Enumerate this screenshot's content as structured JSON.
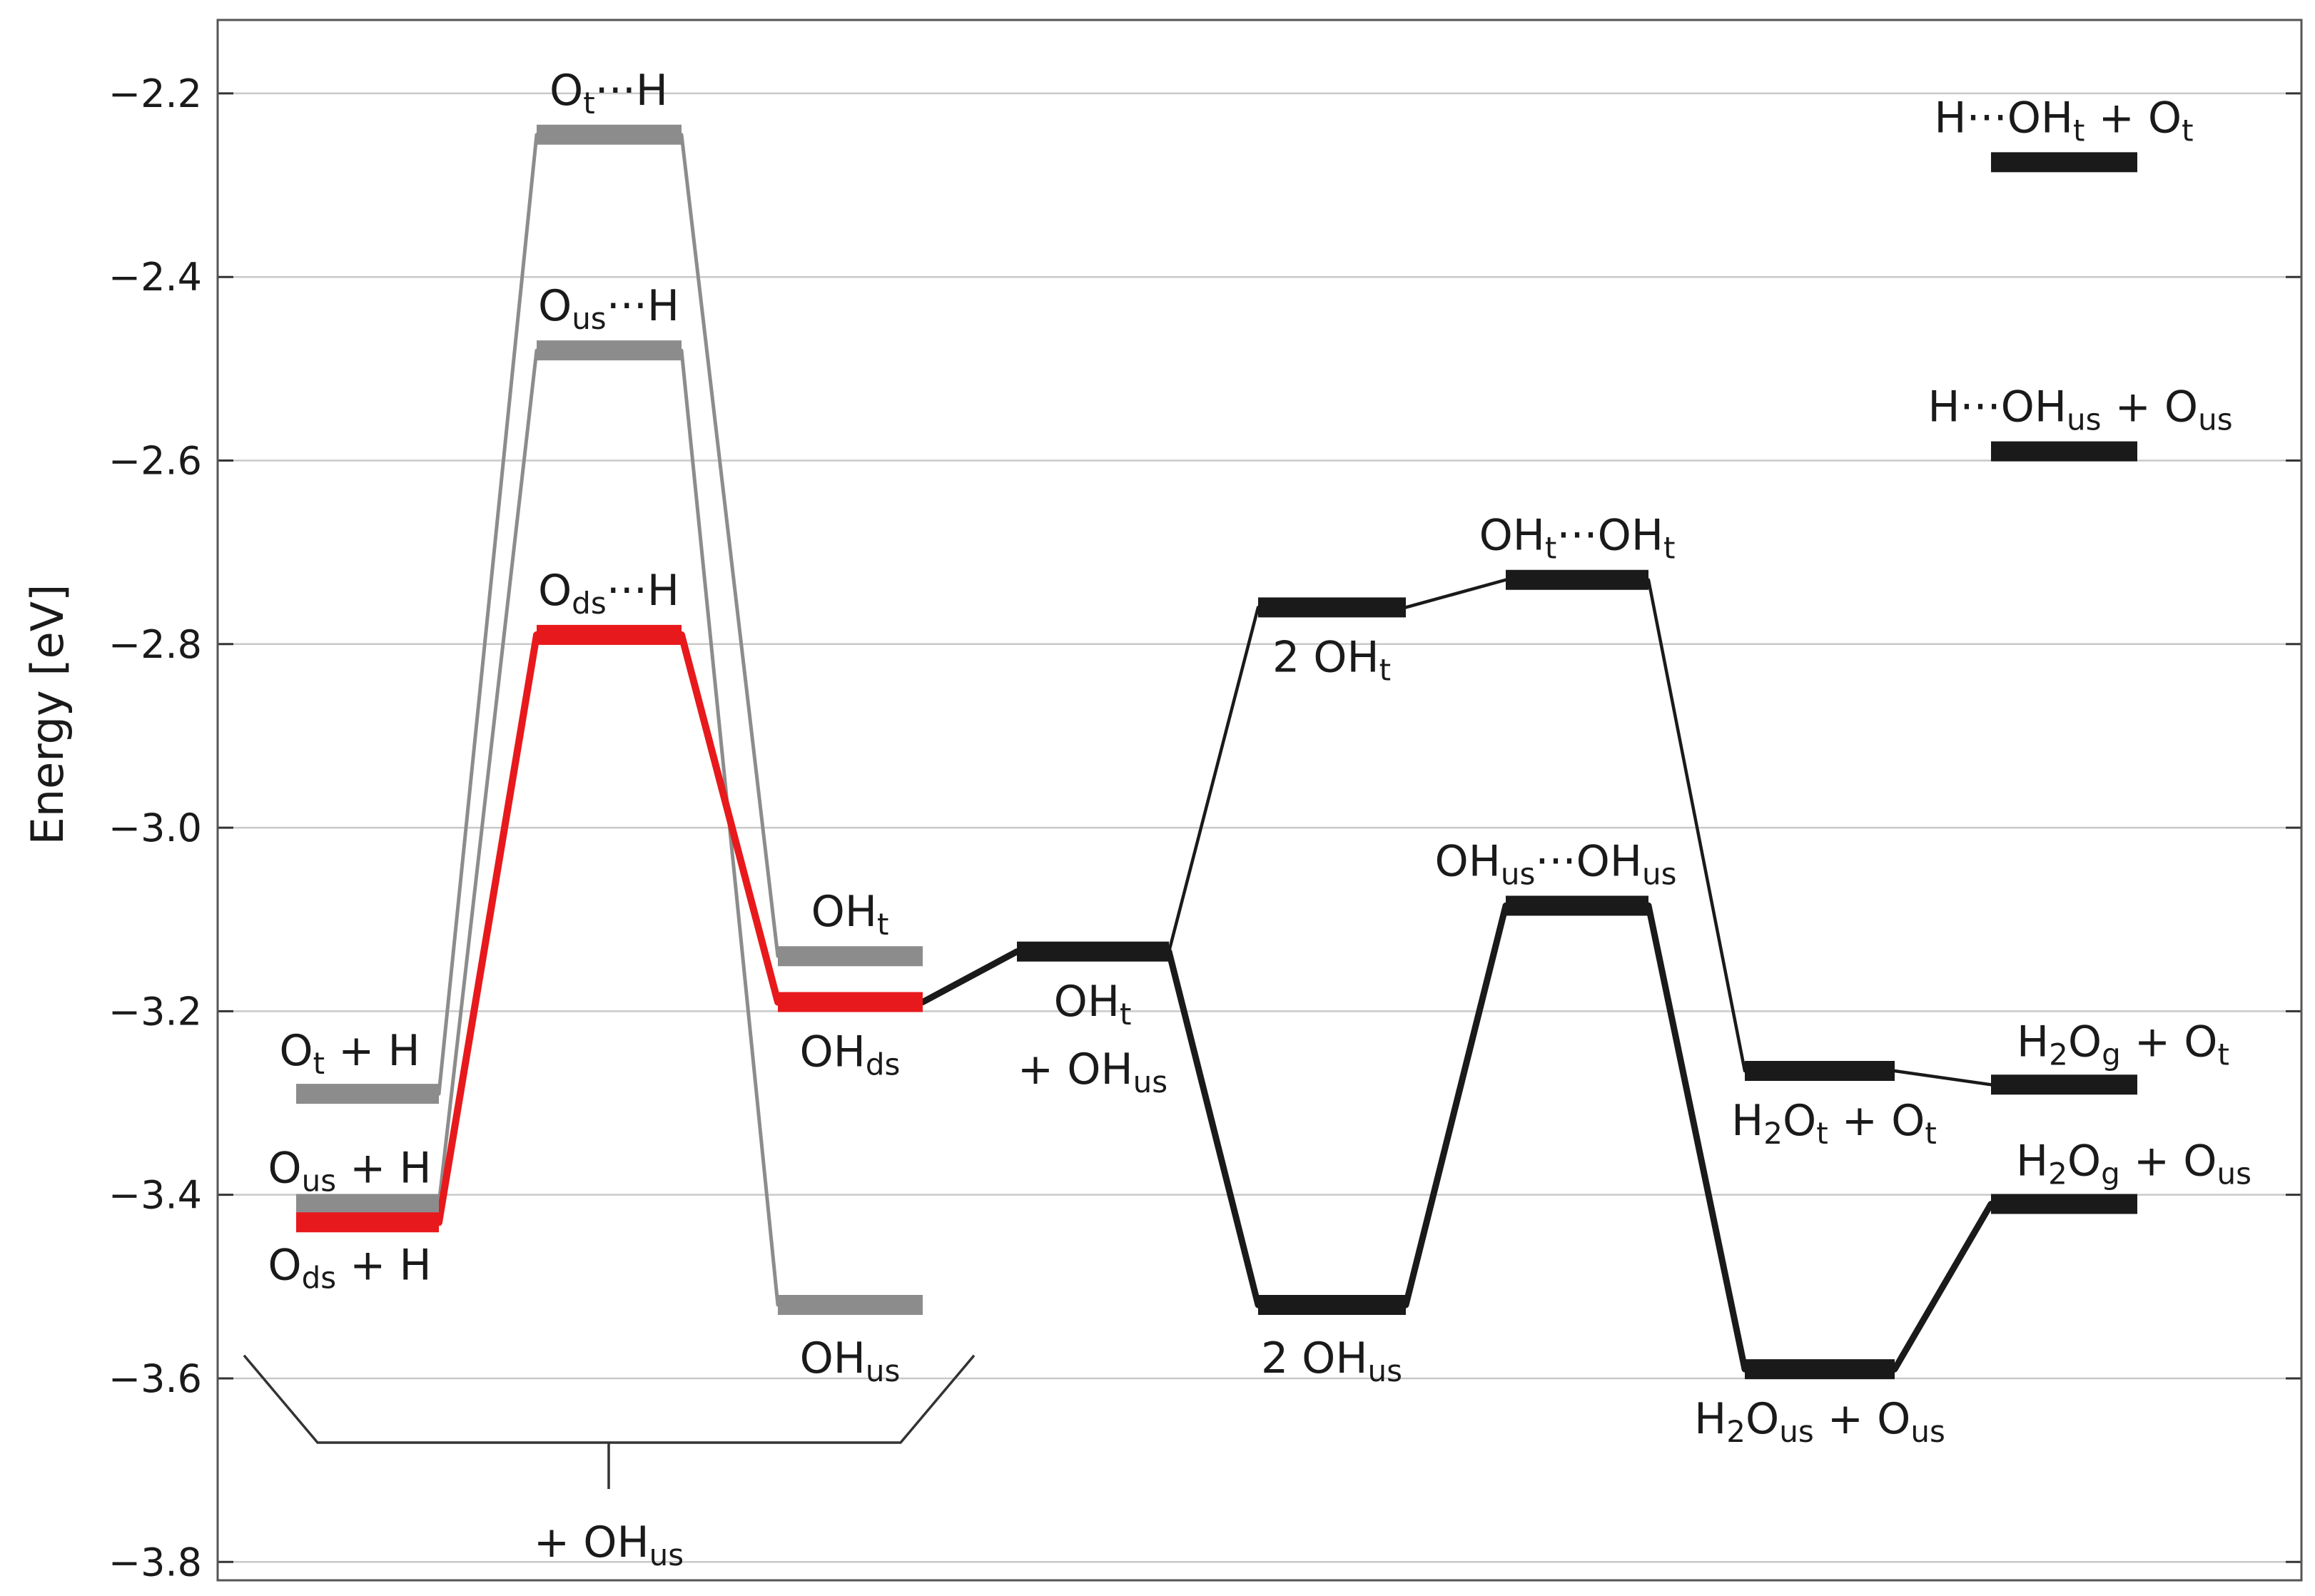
{
  "chart_data": {
    "type": "energy-level-diagram",
    "ylabel": "Energy [eV]",
    "ylim": [
      -3.82,
      -2.12
    ],
    "y_ticks": [
      -2.2,
      -2.4,
      -2.6,
      -2.8,
      -3.0,
      -3.2,
      -3.4,
      -3.6,
      -3.8
    ],
    "y_tick_labels": [
      "−2.2",
      "−2.4",
      "−2.6",
      "−2.8",
      "−3.0",
      "−3.2",
      "−3.4",
      "−3.6",
      "−3.8"
    ],
    "grid": true,
    "colors": {
      "red": "#e8191c",
      "grey": "#8c8c8c",
      "black": "#1a1a1a"
    },
    "levels": [
      {
        "id": "Ot_H",
        "pos": 1,
        "energy": -3.29,
        "color": "grey",
        "label": [
          [
            "O",
            ""
          ],
          [
            "t",
            "sub"
          ],
          [
            " + H",
            ""
          ]
        ]
      },
      {
        "id": "Ous_H",
        "pos": 1,
        "energy": -3.41,
        "color": "grey",
        "label": [
          [
            "O",
            ""
          ],
          [
            "us",
            "sub"
          ],
          [
            " + H",
            ""
          ]
        ]
      },
      {
        "id": "Ods_H",
        "pos": 1,
        "energy": -3.43,
        "color": "red",
        "label": [
          [
            "O",
            ""
          ],
          [
            "ds",
            "sub"
          ],
          [
            " + H",
            ""
          ]
        ]
      },
      {
        "id": "Ot_TS",
        "pos": 2,
        "energy": -2.245,
        "color": "grey",
        "label": [
          [
            "O",
            ""
          ],
          [
            "t",
            "sub"
          ],
          [
            "···H",
            ""
          ]
        ]
      },
      {
        "id": "Ous_TS",
        "pos": 2,
        "energy": -2.48,
        "color": "grey",
        "label": [
          [
            "O",
            ""
          ],
          [
            "us",
            "sub"
          ],
          [
            "···H",
            ""
          ]
        ]
      },
      {
        "id": "Ods_TS",
        "pos": 2,
        "energy": -2.79,
        "color": "red",
        "label": [
          [
            "O",
            ""
          ],
          [
            "ds",
            "sub"
          ],
          [
            "···H",
            ""
          ]
        ]
      },
      {
        "id": "OHt",
        "pos": 3,
        "energy": -3.14,
        "color": "grey",
        "label": [
          [
            "OH",
            ""
          ],
          [
            "t",
            "sub"
          ]
        ]
      },
      {
        "id": "OHds",
        "pos": 3,
        "energy": -3.19,
        "color": "red",
        "label": [
          [
            "OH",
            ""
          ],
          [
            "ds",
            "sub"
          ]
        ]
      },
      {
        "id": "OHus",
        "pos": 3,
        "energy": -3.52,
        "color": "grey",
        "label": [
          [
            "OH",
            ""
          ],
          [
            "us",
            "sub"
          ]
        ]
      },
      {
        "id": "OHt_OHus",
        "pos": 4,
        "energy": -3.135,
        "color": "black",
        "label": [
          [
            "OH",
            ""
          ],
          [
            "t",
            "sub"
          ]
        ],
        "label2": [
          [
            "+ OH",
            ""
          ],
          [
            "us",
            "sub"
          ]
        ]
      },
      {
        "id": "2OHt",
        "pos": 5,
        "energy": -2.76,
        "color": "black",
        "label": [
          [
            "2 OH",
            ""
          ],
          [
            "t",
            "sub"
          ]
        ]
      },
      {
        "id": "2OHus",
        "pos": 5,
        "energy": -3.52,
        "color": "black",
        "label": [
          [
            "2 OH",
            ""
          ],
          [
            "us",
            "sub"
          ]
        ]
      },
      {
        "id": "OHt_OHt_TS",
        "pos": 6,
        "energy": -2.73,
        "color": "black",
        "label": [
          [
            "OH",
            ""
          ],
          [
            "t",
            "sub"
          ],
          [
            "···OH",
            ""
          ],
          [
            "t",
            "sub"
          ]
        ]
      },
      {
        "id": "OHus_OHus_TS",
        "pos": 6,
        "energy": -3.085,
        "color": "black",
        "label": [
          [
            "OH",
            ""
          ],
          [
            "us",
            "sub"
          ],
          [
            "···OH",
            ""
          ],
          [
            "us",
            "sub"
          ]
        ]
      },
      {
        "id": "H2Ot_Ot",
        "pos": 7,
        "energy": -3.265,
        "color": "black",
        "label": [
          [
            "H",
            ""
          ],
          [
            "2",
            "sub"
          ],
          [
            "O",
            ""
          ],
          [
            "t",
            "sub"
          ],
          [
            " + O",
            ""
          ],
          [
            "t",
            "sub"
          ]
        ]
      },
      {
        "id": "H2Ous_Ous",
        "pos": 7,
        "energy": -3.59,
        "color": "black",
        "label": [
          [
            "H",
            ""
          ],
          [
            "2",
            "sub"
          ],
          [
            "O",
            ""
          ],
          [
            "us",
            "sub"
          ],
          [
            " + O",
            ""
          ],
          [
            "us",
            "sub"
          ]
        ]
      },
      {
        "id": "H_OHt_Ot",
        "pos": 8,
        "energy": -2.275,
        "color": "black",
        "label": [
          [
            "H···OH",
            ""
          ],
          [
            "t",
            "sub"
          ],
          [
            " + O",
            ""
          ],
          [
            "t",
            "sub"
          ]
        ]
      },
      {
        "id": "H_OHus_Ous",
        "pos": 8,
        "energy": -2.59,
        "color": "black",
        "label": [
          [
            "H···OH",
            ""
          ],
          [
            "us",
            "sub"
          ],
          [
            " + O",
            ""
          ],
          [
            "us",
            "sub"
          ]
        ]
      },
      {
        "id": "H2Og_Ot",
        "pos": 8,
        "energy": -3.28,
        "color": "black",
        "label": [
          [
            "H",
            ""
          ],
          [
            "2",
            "sub"
          ],
          [
            "O",
            ""
          ],
          [
            "g",
            "sub"
          ],
          [
            " + O",
            ""
          ],
          [
            "t",
            "sub"
          ]
        ]
      },
      {
        "id": "H2Og_Ous",
        "pos": 8,
        "energy": -3.41,
        "color": "black",
        "label": [
          [
            "H",
            ""
          ],
          [
            "2",
            "sub"
          ],
          [
            "O",
            ""
          ],
          [
            "g",
            "sub"
          ],
          [
            " + O",
            ""
          ],
          [
            "us",
            "sub"
          ]
        ]
      }
    ],
    "connections": [
      {
        "from": "Ot_H",
        "to": "Ot_TS",
        "style": "grey-thin"
      },
      {
        "from": "Ot_TS",
        "to": "OHt",
        "style": "grey-thin"
      },
      {
        "from": "Ous_H",
        "to": "Ous_TS",
        "style": "grey-thin"
      },
      {
        "from": "Ous_TS",
        "to": "OHus",
        "style": "grey-thin"
      },
      {
        "from": "Ods_H",
        "to": "Ods_TS",
        "style": "red-thick"
      },
      {
        "from": "Ods_TS",
        "to": "OHds",
        "style": "red-thick"
      },
      {
        "from": "OHds",
        "to": "OHt_OHus",
        "style": "black-thick"
      },
      {
        "from": "OHt_OHus",
        "to": "2OHt",
        "style": "black-thin"
      },
      {
        "from": "2OHt",
        "to": "OHt_OHt_TS",
        "style": "black-thin"
      },
      {
        "from": "OHt_OHt_TS",
        "to": "H2Ot_Ot",
        "style": "black-thin"
      },
      {
        "from": "H2Ot_Ot",
        "to": "H2Og_Ot",
        "style": "black-thin"
      },
      {
        "from": "OHt_OHus",
        "to": "2OHus",
        "style": "black-thick"
      },
      {
        "from": "2OHus",
        "to": "OHus_OHus_TS",
        "style": "black-thick"
      },
      {
        "from": "OHus_OHus_TS",
        "to": "H2Ous_Ous",
        "style": "black-thick"
      },
      {
        "from": "H2Ous_Ous",
        "to": "H2Og_Ous",
        "style": "black-thick"
      }
    ],
    "bracket_label": [
      [
        "+ OH",
        ""
      ],
      [
        "us",
        "sub"
      ]
    ]
  }
}
